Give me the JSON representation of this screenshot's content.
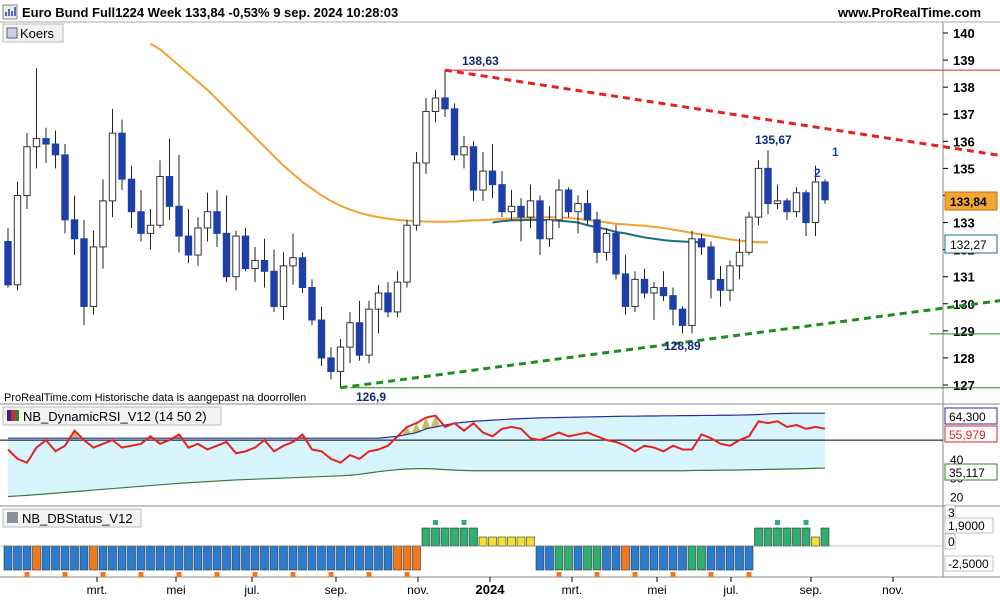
{
  "header": {
    "title": "Euro Bund Full1224 Week 133,84 -0,53% 9 sep. 2024 10:28:03",
    "brand": "www.ProRealTime.com"
  },
  "colors": {
    "up": "#ffffff",
    "down": "#1f3fa8",
    "ma_orange": "#f5a030",
    "ma_teal": "#1a6e7e",
    "resistance": "#e52222",
    "support": "#1e8e1e",
    "rsi_line": "#e52222",
    "rsi_band": "#2a2aa0",
    "rsi_low": "#3a7a3a",
    "rsi_fill": "#d8f4fc",
    "hist_blue": "#2a7cd0",
    "hist_green": "#2fae72",
    "hist_yellow": "#f2e030",
    "hist_orange": "#f07820"
  },
  "chart_data": [
    {
      "type": "candlestick",
      "panel": "price",
      "legend": "Koers",
      "y_ticks": [
        "140",
        "139",
        "138",
        "137",
        "136",
        "135",
        "134",
        "133",
        "132",
        "131",
        "130",
        "129",
        "128",
        "127"
      ],
      "current_value": "133,84",
      "ma_value": "132,27",
      "annotations": [
        {
          "text": "138,63",
          "x": 68,
          "y": 138.63
        },
        {
          "text": "135,67",
          "x": 117,
          "y": 135.67
        },
        {
          "text": "128,89",
          "x": 101,
          "y": 128.89
        },
        {
          "text": "126,9",
          "x": 54,
          "y": 126.9
        },
        {
          "text": "1",
          "x": 124,
          "y": 135.7
        },
        {
          "text": "2",
          "x": 124,
          "y": 134.8
        }
      ],
      "note": "ProRealTime.com Historische data is aangepast na doorrollen",
      "ohlc": [
        [
          132.3,
          132.8,
          130.6,
          130.7
        ],
        [
          130.7,
          134.5,
          130.5,
          134.0
        ],
        [
          134.0,
          136.3,
          133.5,
          135.8
        ],
        [
          135.8,
          138.7,
          135.0,
          136.1
        ],
        [
          136.1,
          136.5,
          135.2,
          135.9
        ],
        [
          135.9,
          136.4,
          135.0,
          135.5
        ],
        [
          135.5,
          135.9,
          132.6,
          133.1
        ],
        [
          133.1,
          134.0,
          131.8,
          132.4
        ],
        [
          132.4,
          133.1,
          129.2,
          129.9
        ],
        [
          129.9,
          132.7,
          129.6,
          132.1
        ],
        [
          132.1,
          134.6,
          131.3,
          133.8
        ],
        [
          133.8,
          137.2,
          133.2,
          136.3
        ],
        [
          136.3,
          136.8,
          134.2,
          134.6
        ],
        [
          134.6,
          135.1,
          132.8,
          133.4
        ],
        [
          133.4,
          134.2,
          132.3,
          132.6
        ],
        [
          132.6,
          133.5,
          132.0,
          132.9
        ],
        [
          132.9,
          135.3,
          132.8,
          134.7
        ],
        [
          134.7,
          136.1,
          133.1,
          133.6
        ],
        [
          133.6,
          135.5,
          131.9,
          132.5
        ],
        [
          132.5,
          133.5,
          131.5,
          131.8
        ],
        [
          131.8,
          133.2,
          131.4,
          132.8
        ],
        [
          132.8,
          134.1,
          132.3,
          133.4
        ],
        [
          133.4,
          134.2,
          132.1,
          132.6
        ],
        [
          132.6,
          134.0,
          130.8,
          131.0
        ],
        [
          131.0,
          132.7,
          130.5,
          132.5
        ],
        [
          132.5,
          132.8,
          131.2,
          131.3
        ],
        [
          131.3,
          132.1,
          130.8,
          131.6
        ],
        [
          131.6,
          132.4,
          130.6,
          131.2
        ],
        [
          131.2,
          132.0,
          129.7,
          129.9
        ],
        [
          129.9,
          131.9,
          129.4,
          131.4
        ],
        [
          131.4,
          132.6,
          130.7,
          131.7
        ],
        [
          131.7,
          131.9,
          130.4,
          130.6
        ],
        [
          130.6,
          130.9,
          129.2,
          129.4
        ],
        [
          129.4,
          129.9,
          127.7,
          128.0
        ],
        [
          128.0,
          128.4,
          127.2,
          127.5
        ],
        [
          127.5,
          128.7,
          126.9,
          128.4
        ],
        [
          128.4,
          129.7,
          127.8,
          129.3
        ],
        [
          129.3,
          130.1,
          127.9,
          128.1
        ],
        [
          128.1,
          130.1,
          127.8,
          129.8
        ],
        [
          129.8,
          130.7,
          128.9,
          130.4
        ],
        [
          130.4,
          130.8,
          129.5,
          129.7
        ],
        [
          129.7,
          131.2,
          129.5,
          130.8
        ],
        [
          130.8,
          133.1,
          130.6,
          132.9
        ],
        [
          132.9,
          135.6,
          132.7,
          135.2
        ],
        [
          135.2,
          137.6,
          134.8,
          137.1
        ],
        [
          137.1,
          137.9,
          136.7,
          137.6
        ],
        [
          137.6,
          138.63,
          136.9,
          137.2
        ],
        [
          137.2,
          137.4,
          135.3,
          135.5
        ],
        [
          135.5,
          136.2,
          135.0,
          135.8
        ],
        [
          135.8,
          136.0,
          133.8,
          134.2
        ],
        [
          134.2,
          135.6,
          133.8,
          134.9
        ],
        [
          134.9,
          135.9,
          133.9,
          134.4
        ],
        [
          134.4,
          134.9,
          133.2,
          133.4
        ],
        [
          133.4,
          134.2,
          133.1,
          133.6
        ],
        [
          133.6,
          133.9,
          132.3,
          133.2
        ],
        [
          133.2,
          134.4,
          132.8,
          133.8
        ],
        [
          133.8,
          134.0,
          131.8,
          132.4
        ],
        [
          132.4,
          133.6,
          132.1,
          133.1
        ],
        [
          133.1,
          134.6,
          132.8,
          134.2
        ],
        [
          134.2,
          134.3,
          133.2,
          133.4
        ],
        [
          133.4,
          134.0,
          132.6,
          133.7
        ],
        [
          133.7,
          134.2,
          132.9,
          133.1
        ],
        [
          133.1,
          133.4,
          131.5,
          131.9
        ],
        [
          131.9,
          132.8,
          131.6,
          132.6
        ],
        [
          132.6,
          132.9,
          130.9,
          131.1
        ],
        [
          131.1,
          131.8,
          129.6,
          129.9
        ],
        [
          129.9,
          131.2,
          129.7,
          130.9
        ],
        [
          130.9,
          131.3,
          130.2,
          130.4
        ],
        [
          130.4,
          130.8,
          129.4,
          130.6
        ],
        [
          130.6,
          131.2,
          130.1,
          130.3
        ],
        [
          130.3,
          130.6,
          129.2,
          129.8
        ],
        [
          129.8,
          129.9,
          128.9,
          129.2
        ],
        [
          129.2,
          132.7,
          128.9,
          132.4
        ],
        [
          132.4,
          132.6,
          131.8,
          132.1
        ],
        [
          132.1,
          132.3,
          130.2,
          130.9
        ],
        [
          130.9,
          131.4,
          129.9,
          130.5
        ],
        [
          130.5,
          131.6,
          130.1,
          131.4
        ],
        [
          131.4,
          132.4,
          130.9,
          131.9
        ],
        [
          131.9,
          133.4,
          131.8,
          133.2
        ],
        [
          133.2,
          135.3,
          132.9,
          135.0
        ],
        [
          135.0,
          135.67,
          133.3,
          133.7
        ],
        [
          133.7,
          134.4,
          133.5,
          133.8
        ],
        [
          133.8,
          133.9,
          133.1,
          133.4
        ],
        [
          133.4,
          134.3,
          133.2,
          134.1
        ],
        [
          134.1,
          134.2,
          132.5,
          133.0
        ],
        [
          133.0,
          135.1,
          132.5,
          134.5
        ],
        [
          134.5,
          134.6,
          133.7,
          133.84
        ]
      ],
      "ma_orange": [
        139.6,
        139.4,
        139.1,
        138.8,
        138.5,
        138.2,
        137.9,
        137.55,
        137.2,
        136.85,
        136.5,
        136.15,
        135.8,
        135.45,
        135.1,
        134.8,
        134.5,
        134.25,
        134.0,
        133.8,
        133.62,
        133.48,
        133.36,
        133.27,
        133.2,
        133.14,
        133.1,
        133.07,
        133.05,
        133.04,
        133.03,
        133.03,
        133.04,
        133.06,
        133.08,
        133.09,
        133.11,
        133.13,
        133.15,
        133.17,
        133.18,
        133.19,
        133.2,
        133.19,
        133.17,
        133.14,
        133.1,
        133.05,
        133.0,
        132.95,
        132.93,
        132.9,
        132.88,
        132.84,
        132.8,
        132.74,
        132.68,
        132.62,
        132.56,
        132.5,
        132.44,
        132.38,
        132.33,
        132.3,
        132.27,
        132.27
      ],
      "ma_orange_start": 9,
      "ma_teal": [
        133.0,
        133.05,
        133.08,
        133.09,
        133.1,
        133.1,
        133.09,
        133.07,
        133.04,
        133.0,
        132.9,
        132.82,
        132.75,
        132.65,
        132.6,
        132.52,
        132.45,
        132.4,
        132.35,
        132.32,
        132.3,
        132.28,
        132.27
      ],
      "ma_teal_start": 48,
      "resistance": {
        "from": [
          46,
          138.63
        ],
        "to": [
          130,
          134.1
        ]
      },
      "support": {
        "from": [
          35,
          126.9
        ],
        "to": [
          130,
          131.3
        ]
      },
      "hlines": [
        {
          "y": 138.63,
          "from": 46,
          "to": 125,
          "color": "resistance"
        },
        {
          "y": 135.67,
          "from": 116,
          "to": 125,
          "color": "resistance"
        },
        {
          "y": 128.89,
          "from": 97,
          "to": 125,
          "color": "support"
        },
        {
          "y": 126.9,
          "from": 36,
          "to": 125,
          "color": "support"
        }
      ]
    },
    {
      "type": "line",
      "panel": "rsi",
      "legend": "NB_DynamicRSI_V12 (14 50 2)",
      "y_ticks": [
        "60",
        "50",
        "40",
        "30",
        "20"
      ],
      "values_labels": [
        "64,300",
        "55,979",
        "35,117"
      ],
      "series": [
        {
          "name": "RSI",
          "values": [
            45,
            40,
            38,
            46,
            50,
            44,
            47,
            55,
            50,
            46,
            48,
            50,
            46,
            47,
            48,
            52,
            48,
            50,
            53,
            46,
            48,
            45,
            47,
            49,
            43,
            44,
            46,
            50,
            44,
            47,
            49,
            53,
            45,
            44,
            40,
            38,
            42,
            40,
            44,
            45,
            47,
            52,
            57,
            59,
            62,
            63,
            57,
            59,
            55,
            59,
            54,
            52,
            56,
            57,
            56,
            51,
            50,
            52,
            54,
            52,
            53,
            54,
            52,
            50,
            49,
            47,
            44,
            47,
            46,
            44,
            47,
            45,
            45,
            53,
            51,
            48,
            47,
            50,
            52,
            60,
            59,
            60,
            57,
            58,
            56,
            57,
            56
          ]
        },
        {
          "name": "upper",
          "values": [
            51,
            51,
            51,
            51,
            51,
            51,
            51,
            51,
            51,
            51,
            51,
            51,
            51,
            51,
            51,
            51,
            51,
            51,
            51,
            51,
            51,
            51,
            51,
            51,
            51,
            51,
            51,
            51,
            51,
            51,
            51,
            51,
            51,
            51,
            51,
            51,
            51,
            51,
            51,
            51,
            51.5,
            52,
            53,
            54,
            56,
            57,
            58,
            59,
            59.5,
            60,
            60.3,
            60.6,
            60.9,
            61.2,
            61.4,
            61.6,
            61.8,
            61.9,
            62,
            62.1,
            62.2,
            62.3,
            62.4,
            62.5,
            62.6,
            62.7,
            62.7,
            62.8,
            62.8,
            62.9,
            62.9,
            63,
            63,
            63.1,
            63.1,
            63.2,
            63.2,
            63.3,
            63.4,
            63.6,
            63.9,
            64.1,
            64.2,
            64.3,
            64.3,
            64.3,
            64.3
          ]
        },
        {
          "name": "lower",
          "values": [
            20,
            20.3,
            20.6,
            21,
            21.4,
            21.8,
            22.2,
            22.6,
            23,
            23.4,
            23.8,
            24.2,
            24.6,
            25,
            25.4,
            25.8,
            26.2,
            26.6,
            27,
            27.3,
            27.6,
            27.9,
            28.2,
            28.5,
            28.8,
            29,
            29.2,
            29.4,
            29.6,
            29.8,
            30,
            30.2,
            30.4,
            30.6,
            30.8,
            31,
            31.3,
            31.8,
            32.5,
            33.2,
            33.8,
            34.3,
            34.6,
            34.8,
            34.8,
            34.6,
            34.3,
            34,
            33.8,
            33.7,
            33.7,
            33.7,
            33.7,
            33.7,
            33.7,
            33.7,
            33.7,
            33.7,
            33.7,
            33.7,
            33.7,
            33.7,
            33.7,
            33.7,
            33.7,
            33.7,
            33.7,
            33.7,
            33.7,
            33.7,
            33.7,
            33.7,
            33.8,
            33.9,
            33.9,
            34,
            34,
            34.1,
            34.2,
            34.3,
            34.4,
            34.5,
            34.6,
            34.7,
            34.8,
            35,
            35.117
          ]
        }
      ]
    },
    {
      "type": "bar",
      "panel": "status",
      "legend": "NB_DBStatus_V12",
      "y_ticks": [
        "3",
        "1,9000",
        "0",
        "-2,5000"
      ],
      "values": [
        -1,
        -1,
        -1,
        -1,
        -1,
        -1,
        -1,
        -1,
        -1,
        -1,
        -1,
        -1,
        -1,
        -1,
        -1,
        -1,
        -1,
        -1,
        -1,
        -1,
        -1,
        -1,
        -1,
        -1,
        -1,
        -1,
        -1,
        -1,
        -1,
        -1,
        -1,
        -1,
        -1,
        -1,
        -1,
        -1,
        -1,
        -1,
        -1,
        -1,
        -1,
        -1,
        -1,
        -1,
        2,
        2,
        2,
        2,
        2,
        2,
        1,
        1,
        1,
        1,
        1,
        1,
        -1,
        -1,
        -1,
        -1,
        -1,
        -1,
        -1,
        -1,
        -1,
        -1,
        -1,
        -1,
        -1,
        -1,
        -1,
        -1,
        -1,
        -1,
        -1,
        -1,
        -1,
        -1,
        -1,
        2,
        2,
        2,
        2,
        2,
        2,
        1,
        2
      ],
      "state": [
        "b",
        "b",
        "b",
        "o",
        "b",
        "b",
        "b",
        "b",
        "b",
        "o",
        "b",
        "b",
        "b",
        "b",
        "b",
        "b",
        "b",
        "b",
        "b",
        "b",
        "b",
        "b",
        "b",
        "b",
        "b",
        "b",
        "b",
        "b",
        "b",
        "b",
        "b",
        "b",
        "b",
        "b",
        "b",
        "b",
        "b",
        "b",
        "b",
        "b",
        "b",
        "o",
        "o",
        "o",
        "g",
        "g",
        "g",
        "g",
        "g",
        "g",
        "y",
        "y",
        "y",
        "y",
        "y",
        "y",
        "b",
        "b",
        "g",
        "g",
        "b",
        "g",
        "g",
        "b",
        "b",
        "o",
        "b",
        "b",
        "b",
        "b",
        "b",
        "b",
        "g",
        "g",
        "b",
        "b",
        "b",
        "b",
        "b",
        "g",
        "g",
        "g",
        "g",
        "g",
        "g",
        "y",
        "g"
      ]
    }
  ],
  "x_axis": {
    "labels": [
      "mrt.",
      "mei",
      "jul.",
      "sep.",
      "nov.",
      "2024",
      "mrt.",
      "mei",
      "jul.",
      "sep.",
      "nov."
    ]
  },
  "icons": {
    "collapse": "collapse-icon",
    "price": "candle-icon",
    "rsi": "rsi-icon",
    "status": "status-icon"
  }
}
